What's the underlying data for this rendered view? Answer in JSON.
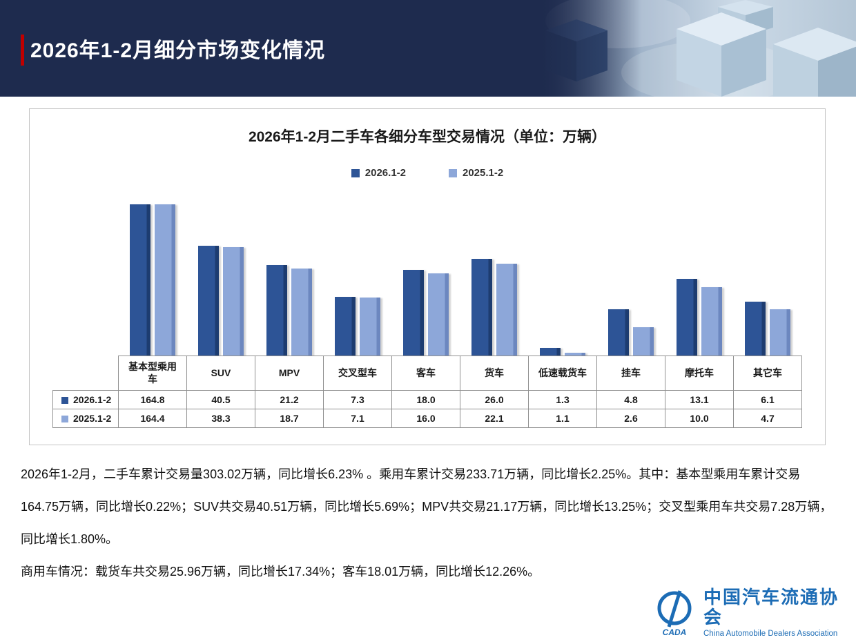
{
  "page": {
    "title": "2026年1-2月细分市场变化情况"
  },
  "chart_data": {
    "type": "bar",
    "title": "2026年1-2月二手车各细分车型交易情况（单位：万辆）",
    "unit": "万辆",
    "scale": "log10",
    "grid": false,
    "legend_position": "top",
    "data_table_shown": true,
    "categories": [
      "基本型乘用车",
      "SUV",
      "MPV",
      "交叉型车",
      "客车",
      "货车",
      "低速载货车",
      "挂车",
      "摩托车",
      "其它车"
    ],
    "series": [
      {
        "name": "2026.1-2",
        "color": "#2d5496",
        "edge_color": "#1d3c70",
        "values": [
          164.8,
          40.5,
          21.2,
          7.3,
          18.0,
          26.0,
          1.3,
          4.8,
          13.1,
          6.1
        ]
      },
      {
        "name": "2025.1-2",
        "color": "#8da7d9",
        "edge_color": "#6c87bf",
        "values": [
          164.4,
          38.3,
          18.7,
          7.1,
          16.0,
          22.1,
          1.1,
          2.6,
          10.0,
          4.7
        ]
      }
    ]
  },
  "body": {
    "paragraphs": [
      "2026年1-2月，二手车累计交易量303.02万辆，同比增长6.23% 。乘用车累计交易233.71万辆，同比增长2.25%。其中：基本型乘用车累计交易164.75万辆，同比增长0.22%；SUV共交易40.51万辆，同比增长5.69%；MPV共交易21.17万辆，同比增长13.25%；交叉型乘用车共交易7.28万辆，同比增长1.80%。",
      "商用车情况：载货车共交易25.96万辆，同比增长17.34%；客车18.01万辆，同比增长12.26%。"
    ]
  },
  "footer": {
    "emblem_text": "CADA",
    "org_name_cn": "中国汽车流通协会",
    "org_name_en": "China Automobile Dealers Association",
    "brand_color": "#1c6cb5"
  },
  "colors": {
    "header_bg": "#1e2b4e",
    "accent_red": "#c00000",
    "series_2026": "#2d5496",
    "series_2025": "#8da7d9"
  }
}
